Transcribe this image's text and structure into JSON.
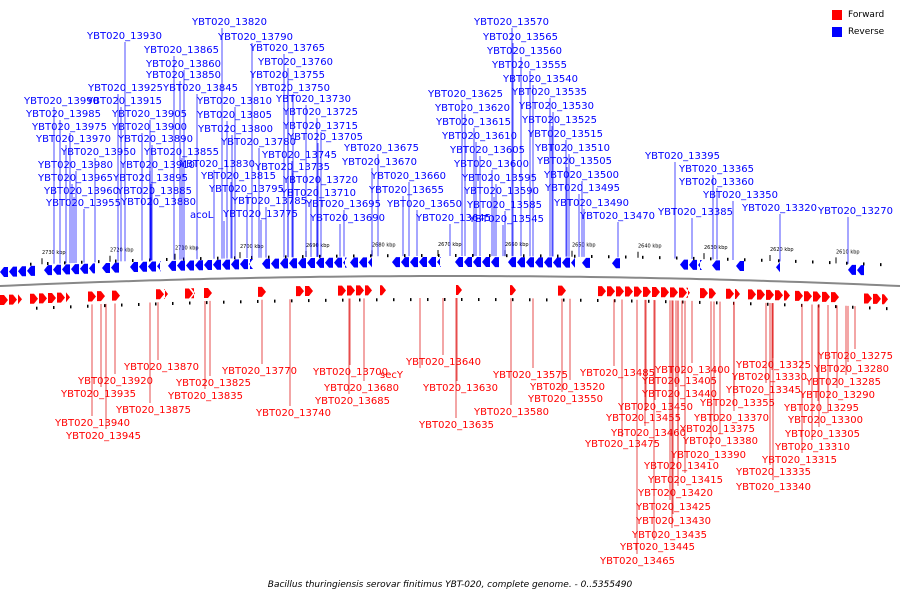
{
  "legend": [
    {
      "label": "Forward",
      "color": "#ff0000"
    },
    {
      "label": "Reverse",
      "color": "#0000ff"
    }
  ],
  "caption": "Bacillus thuringiensis serovar finitimus YBT-020, complete genome. - 0..5355490",
  "colors": {
    "forward": "#ff0000",
    "reverse": "#0000ff",
    "axis": "#888888",
    "connector_rev": "#0000ff",
    "connector_fwd": "#dd0000"
  },
  "ticks": [
    "2730 kbp",
    "2720 kbp",
    "2710 kbp",
    "2700 kbp",
    "2690 kbp",
    "2680 kbp",
    "2670 kbp",
    "2660 kbp",
    "2650 kbp",
    "2640 kbp",
    "2630 kbp",
    "2620 kbp",
    "2610 kbp"
  ],
  "reverse_labels": [
    "YBT020_13820",
    "YBT020_13790",
    "YBT020_13930",
    "YBT020_13865",
    "YBT020_13765",
    "YBT020_13860",
    "YBT020_13760",
    "YBT020_13850",
    "YBT020_13755",
    "YBT020_13925",
    "YBT020_13845",
    "YBT020_13750",
    "YBT020_13990",
    "YBT020_13915",
    "YBT020_13810",
    "YBT020_13730",
    "YBT020_13985",
    "YBT020_13905",
    "YBT020_13805",
    "YBT020_13725",
    "YBT020_13975",
    "YBT020_13900",
    "YBT020_13800",
    "YBT020_13715",
    "YBT020_13970",
    "YBT020_13890",
    "YBT020_13780",
    "YBT020_13705",
    "YBT020_13950",
    "YBT020_13855",
    "YBT020_13745",
    "YBT020_13675",
    "YBT020_13980",
    "YBT020_13910",
    "YBT020_13830",
    "YBT020_13735",
    "YBT020_13670",
    "YBT020_13965",
    "YBT020_13895",
    "YBT020_13815",
    "YBT020_13720",
    "YBT020_13660",
    "YBT020_13960",
    "YBT020_13885",
    "YBT020_13795",
    "YBT020_13710",
    "YBT020_13655",
    "YBT020_13955",
    "YBT020_13880",
    "YBT020_13785",
    "YBT020_13695",
    "YBT020_13650",
    "acoL",
    "YBT020_13775",
    "YBT020_13690",
    "YBT020_13645",
    "YBT020_13570",
    "YBT020_13565",
    "YBT020_13560",
    "YBT020_13555",
    "YBT020_13540",
    "YBT020_13625",
    "YBT020_13535",
    "YBT020_13620",
    "YBT020_13530",
    "YBT020_13615",
    "YBT020_13525",
    "YBT020_13610",
    "YBT020_13515",
    "YBT020_13605",
    "YBT020_13510",
    "YBT020_13600",
    "YBT020_13505",
    "YBT020_13595",
    "YBT020_13500",
    "YBT020_13590",
    "YBT020_13495",
    "YBT020_13585",
    "YBT020_13490",
    "YBT020_13545",
    "YBT020_13470",
    "YBT020_13395",
    "YBT020_13365",
    "YBT020_13360",
    "YBT020_13350",
    "YBT020_13385",
    "YBT020_13320",
    "YBT020_13270"
  ],
  "forward_labels": [
    "YBT020_13870",
    "YBT020_13920",
    "YBT020_13935",
    "YBT020_13875",
    "YBT020_13940",
    "YBT020_13945",
    "YBT020_13825",
    "YBT020_13835",
    "YBT020_13770",
    "YBT020_13740",
    "YBT020_13700",
    "YBT020_13680",
    "YBT020_13685",
    "YBT020_13640",
    "secY",
    "YBT020_13630",
    "YBT020_13635",
    "YBT020_13575",
    "YBT020_13550",
    "YBT020_13580",
    "YBT020_13520",
    "YBT020_13485",
    "YBT020_13400",
    "YBT020_13405",
    "YBT020_13440",
    "YBT020_13450",
    "YBT020_13455",
    "YBT020_13460",
    "YBT020_13475",
    "YBT020_13370",
    "YBT020_13375",
    "YBT020_13380",
    "YBT020_13390",
    "YBT020_13410",
    "YBT020_13415",
    "YBT020_13420",
    "YBT020_13425",
    "YBT020_13430",
    "YBT020_13435",
    "YBT020_13445",
    "YBT020_13465",
    "YBT020_13345",
    "YBT020_13355",
    "YBT020_13325",
    "YBT020_13330",
    "YBT020_13335",
    "YBT020_13340",
    "YBT020_13300",
    "YBT020_13305",
    "YBT020_13310",
    "YBT020_13315",
    "YBT020_13295",
    "YBT020_13290",
    "YBT020_13285",
    "YBT020_13280",
    "YBT020_13275"
  ]
}
